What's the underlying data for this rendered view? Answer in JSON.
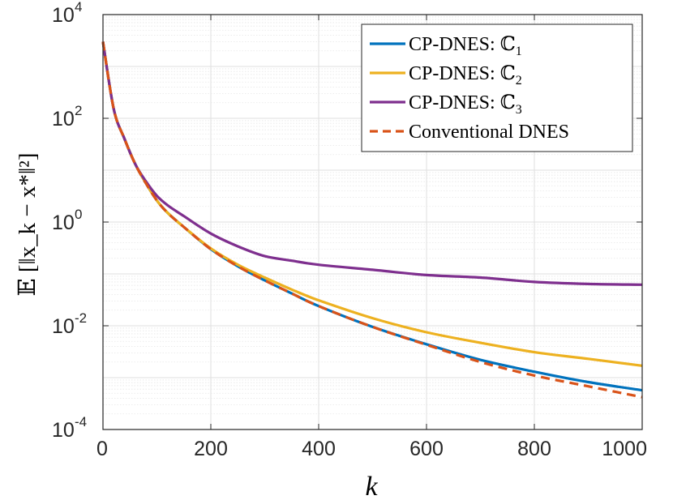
{
  "chart_data": {
    "type": "line",
    "title": "",
    "xlabel": "k",
    "ylabel": "𝔼 [‖x_k − x*‖²]",
    "xlim": [
      0,
      1000
    ],
    "ylim": [
      0.0001,
      10000
    ],
    "yscale": "log",
    "grid": true,
    "legend_position": "top-right",
    "x_ticks": [
      0,
      200,
      400,
      600,
      800,
      1000
    ],
    "y_ticks": [
      {
        "base": "10",
        "exp": "4",
        "value": 10000
      },
      {
        "base": "10",
        "exp": "2",
        "value": 100
      },
      {
        "base": "10",
        "exp": "0",
        "value": 1
      },
      {
        "base": "10",
        "exp": "-2",
        "value": 0.01
      },
      {
        "base": "10",
        "exp": "-4",
        "value": 0.0001
      }
    ],
    "x": [
      0,
      20,
      40,
      60,
      80,
      100,
      120,
      150,
      200,
      250,
      300,
      350,
      400,
      500,
      600,
      700,
      800,
      900,
      1000
    ],
    "series": [
      {
        "name": "CP-DNES: ℂ1",
        "legend_prefix": "CP-DNES: ℂ",
        "legend_sub": "1",
        "color": "#0072BD",
        "dash": "solid",
        "values": [
          3000,
          150,
          40,
          13,
          5.5,
          2.6,
          1.5,
          0.8,
          0.3,
          0.14,
          0.075,
          0.042,
          0.024,
          0.0095,
          0.0044,
          0.0022,
          0.0013,
          0.00082,
          0.00057
        ]
      },
      {
        "name": "CP-DNES: ℂ2",
        "legend_prefix": "CP-DNES: ℂ",
        "legend_sub": "2",
        "color": "#EDB120",
        "dash": "solid",
        "values": [
          3000,
          150,
          40,
          13,
          5.5,
          2.6,
          1.5,
          0.8,
          0.31,
          0.15,
          0.085,
          0.05,
          0.031,
          0.014,
          0.0075,
          0.0047,
          0.0031,
          0.0023,
          0.0017
        ]
      },
      {
        "name": "CP-DNES: ℂ3",
        "legend_prefix": "CP-DNES: ℂ",
        "legend_sub": "3",
        "color": "#7E2F8E",
        "dash": "solid",
        "values": [
          3000,
          150,
          40,
          13,
          6,
          3.2,
          2.1,
          1.3,
          0.6,
          0.34,
          0.22,
          0.18,
          0.15,
          0.12,
          0.095,
          0.085,
          0.07,
          0.064,
          0.062
        ]
      },
      {
        "name": "Conventional DNES",
        "legend_prefix": "Conventional DNES",
        "legend_sub": "",
        "color": "#D95319",
        "dash": "dashed",
        "values": [
          3000,
          150,
          40,
          13,
          5.5,
          2.6,
          1.5,
          0.8,
          0.3,
          0.14,
          0.075,
          0.042,
          0.024,
          0.0095,
          0.0043,
          0.002,
          0.0011,
          0.00068,
          0.00042
        ]
      }
    ]
  }
}
